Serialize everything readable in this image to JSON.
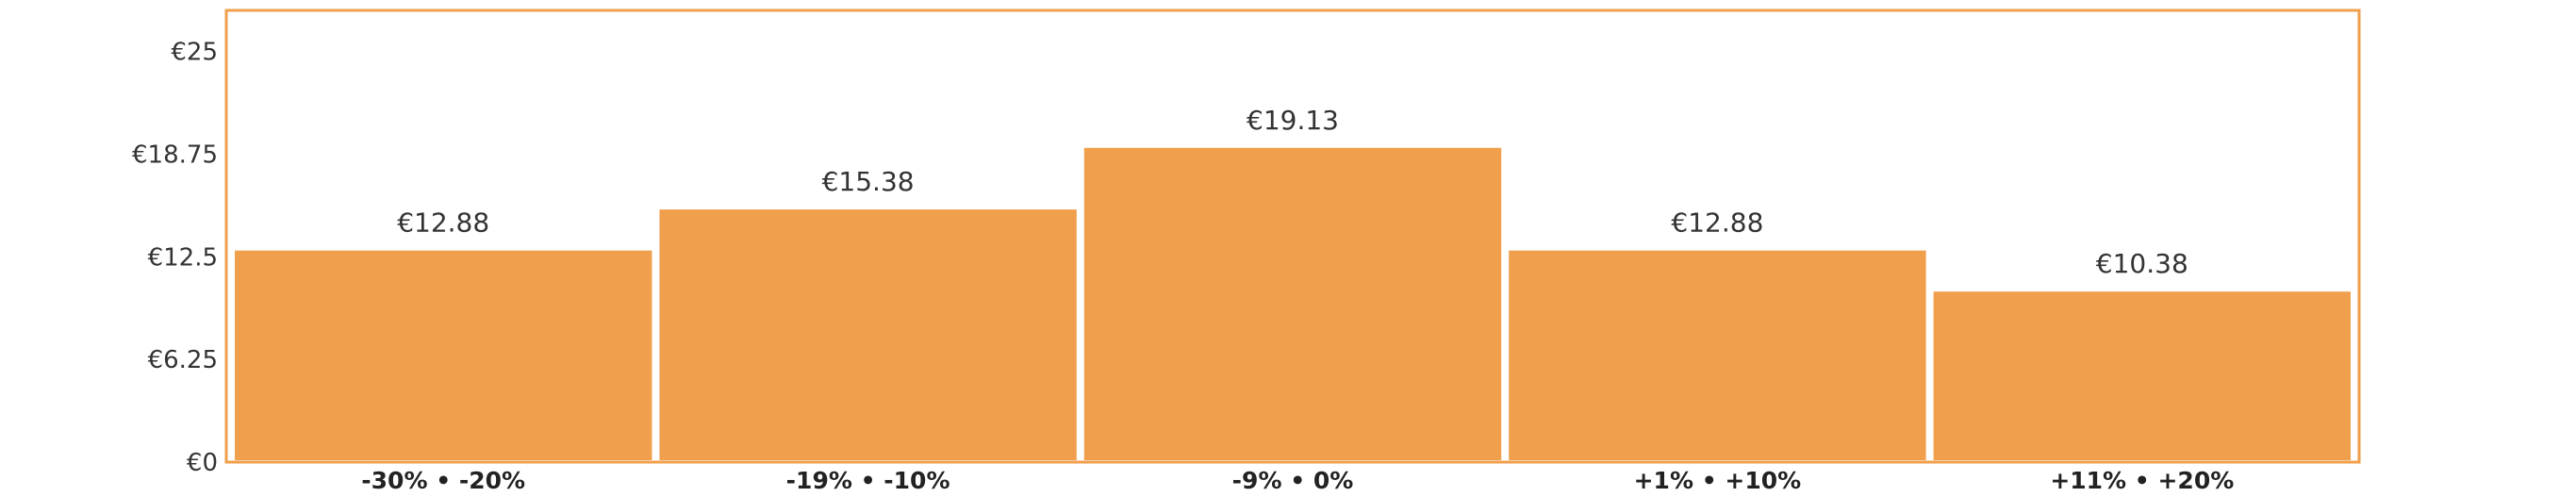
{
  "chart_data": {
    "type": "bar",
    "categories": [
      "-30% • -20%",
      "-19% • -10%",
      "-9% • 0%",
      "+1% • +10%",
      "+11% • +20%"
    ],
    "values": [
      12.88,
      15.38,
      19.13,
      12.88,
      10.38
    ],
    "value_labels": [
      "€12.88",
      "€15.38",
      "€19.13",
      "€12.88",
      "€10.38"
    ],
    "y_ticks": [
      0,
      6.25,
      12.5,
      18.75,
      25
    ],
    "y_tick_labels": [
      "€0",
      "€6.25",
      "€12.5",
      "€18.75",
      "€25"
    ],
    "ylim": [
      0,
      27.5
    ],
    "grid": false,
    "colors": {
      "bar": "#F09F4D",
      "frame": "#F09F4D",
      "text": "#333333"
    }
  }
}
